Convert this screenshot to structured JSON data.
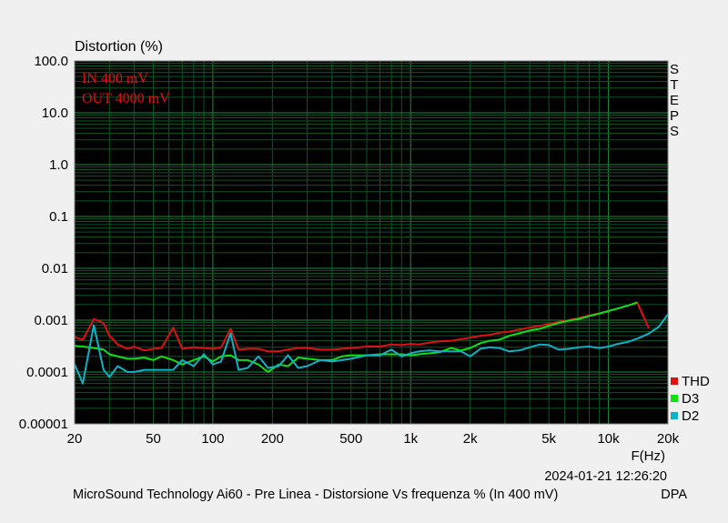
{
  "chart_data": {
    "type": "line",
    "title": "",
    "ylabel": "Distortion (%)",
    "xlabel": "F(Hz)",
    "x_scale": "log",
    "y_scale": "log",
    "xlim": [
      20,
      20000
    ],
    "ylim": [
      1e-05,
      100
    ],
    "grid": true,
    "legend_position": "bottom-right",
    "x_ticks": [
      {
        "value": 20,
        "label": "20"
      },
      {
        "value": 50,
        "label": "50"
      },
      {
        "value": 100,
        "label": "100"
      },
      {
        "value": 200,
        "label": "200"
      },
      {
        "value": 500,
        "label": "500"
      },
      {
        "value": 1000,
        "label": "1k"
      },
      {
        "value": 2000,
        "label": "2k"
      },
      {
        "value": 5000,
        "label": "5k"
      },
      {
        "value": 10000,
        "label": "10k"
      },
      {
        "value": 20000,
        "label": "20k"
      }
    ],
    "y_ticks": [
      {
        "value": 100,
        "label": "100.0"
      },
      {
        "value": 10,
        "label": "10.0"
      },
      {
        "value": 1,
        "label": "1.0"
      },
      {
        "value": 0.1,
        "label": "0.1"
      },
      {
        "value": 0.01,
        "label": "0.01"
      },
      {
        "value": 0.001,
        "label": "0.001"
      },
      {
        "value": 0.0001,
        "label": "0.0001"
      },
      {
        "value": 1e-05,
        "label": "0.00001"
      }
    ],
    "annotations": [
      "IN 400 mV",
      "OUT 4000 mV"
    ],
    "side_label": "STEPS",
    "series": [
      {
        "name": "THD",
        "color": "#e01010",
        "points": [
          [
            20,
            0.00047
          ],
          [
            22,
            0.00042
          ],
          [
            25,
            0.00105
          ],
          [
            28,
            0.00088
          ],
          [
            30,
            0.0005
          ],
          [
            33,
            0.00034
          ],
          [
            37,
            0.00028
          ],
          [
            40,
            0.00031
          ],
          [
            45,
            0.00026
          ],
          [
            50,
            0.00028
          ],
          [
            55,
            0.00029
          ],
          [
            63,
            0.00072
          ],
          [
            70,
            0.00028
          ],
          [
            80,
            0.0003
          ],
          [
            90,
            0.00029
          ],
          [
            100,
            0.00028
          ],
          [
            110,
            0.0003
          ],
          [
            123,
            0.00068
          ],
          [
            135,
            0.00027
          ],
          [
            150,
            0.00028
          ],
          [
            170,
            0.00028
          ],
          [
            190,
            0.00025
          ],
          [
            215,
            0.00025
          ],
          [
            240,
            0.00027
          ],
          [
            270,
            0.00029
          ],
          [
            300,
            0.00029
          ],
          [
            350,
            0.00027
          ],
          [
            400,
            0.00027
          ],
          [
            450,
            0.00028
          ],
          [
            500,
            0.00029
          ],
          [
            600,
            0.00031
          ],
          [
            700,
            0.00031
          ],
          [
            800,
            0.00034
          ],
          [
            900,
            0.00033
          ],
          [
            1000,
            0.00035
          ],
          [
            1100,
            0.00034
          ],
          [
            1250,
            0.00037
          ],
          [
            1400,
            0.00039
          ],
          [
            1600,
            0.0004
          ],
          [
            1800,
            0.00043
          ],
          [
            2000,
            0.00046
          ],
          [
            2250,
            0.0005
          ],
          [
            2500,
            0.00052
          ],
          [
            2800,
            0.00057
          ],
          [
            3150,
            0.0006
          ],
          [
            3550,
            0.00066
          ],
          [
            4000,
            0.00072
          ],
          [
            4500,
            0.00078
          ],
          [
            5000,
            0.00085
          ],
          [
            5600,
            0.00093
          ],
          [
            6300,
            0.001
          ],
          [
            7100,
            0.0011
          ],
          [
            8000,
            0.00123
          ],
          [
            9000,
            0.00136
          ],
          [
            10000,
            0.0015
          ],
          [
            11200,
            0.00168
          ],
          [
            12500,
            0.0019
          ],
          [
            14000,
            0.00218
          ],
          [
            16000,
            0.0007
          ]
        ]
      },
      {
        "name": "D3",
        "color": "#10e010",
        "points": [
          [
            20,
            0.00032
          ],
          [
            22,
            0.00031
          ],
          [
            25,
            0.00029
          ],
          [
            28,
            0.00027
          ],
          [
            30,
            0.00022
          ],
          [
            33,
            0.0002
          ],
          [
            37,
            0.00018
          ],
          [
            40,
            0.00018
          ],
          [
            45,
            0.00019
          ],
          [
            50,
            0.00017
          ],
          [
            55,
            0.0002
          ],
          [
            63,
            0.00017
          ],
          [
            70,
            0.00014
          ],
          [
            80,
            0.00017
          ],
          [
            90,
            0.0002
          ],
          [
            100,
            0.00016
          ],
          [
            110,
            0.0002
          ],
          [
            123,
            0.00021
          ],
          [
            135,
            0.00017
          ],
          [
            150,
            0.00017
          ],
          [
            170,
            0.00014
          ],
          [
            190,
            0.0001
          ],
          [
            215,
            0.00014
          ],
          [
            240,
            0.00013
          ],
          [
            270,
            0.00019
          ],
          [
            300,
            0.00018
          ],
          [
            350,
            0.00017
          ],
          [
            400,
            0.00017
          ],
          [
            450,
            0.0002
          ],
          [
            500,
            0.00021
          ],
          [
            600,
            0.00021
          ],
          [
            700,
            0.00022
          ],
          [
            800,
            0.00022
          ],
          [
            900,
            0.00022
          ],
          [
            1000,
            0.00021
          ],
          [
            1100,
            0.00022
          ],
          [
            1250,
            0.00023
          ],
          [
            1400,
            0.00024
          ],
          [
            1600,
            0.00029
          ],
          [
            1800,
            0.00026
          ],
          [
            2000,
            0.00029
          ],
          [
            2250,
            0.00036
          ],
          [
            2500,
            0.0004
          ],
          [
            2800,
            0.00042
          ],
          [
            3150,
            0.0005
          ],
          [
            3550,
            0.00056
          ],
          [
            4000,
            0.00063
          ],
          [
            4500,
            0.00068
          ],
          [
            5000,
            0.00078
          ],
          [
            5600,
            0.00088
          ],
          [
            6300,
            0.00098
          ],
          [
            7100,
            0.00105
          ],
          [
            8000,
            0.0012
          ],
          [
            9000,
            0.00134
          ],
          [
            10000,
            0.0015
          ],
          [
            11200,
            0.0017
          ],
          [
            12500,
            0.0019
          ],
          [
            14000,
            0.0022
          ]
        ]
      },
      {
        "name": "D2",
        "color": "#10b0c8",
        "points": [
          [
            20,
            0.00014
          ],
          [
            22,
            6e-05
          ],
          [
            25,
            0.0008
          ],
          [
            28,
            0.00011
          ],
          [
            30,
            8e-05
          ],
          [
            33,
            0.00013
          ],
          [
            37,
            0.0001
          ],
          [
            40,
            0.0001
          ],
          [
            45,
            0.00011
          ],
          [
            50,
            0.00011
          ],
          [
            55,
            0.00011
          ],
          [
            63,
            0.00011
          ],
          [
            70,
            0.00017
          ],
          [
            80,
            0.00013
          ],
          [
            90,
            0.00022
          ],
          [
            100,
            0.00014
          ],
          [
            110,
            0.00016
          ],
          [
            123,
            0.00056
          ],
          [
            135,
            0.00011
          ],
          [
            150,
            0.00012
          ],
          [
            170,
            0.0002
          ],
          [
            190,
            0.00012
          ],
          [
            215,
            0.00013
          ],
          [
            240,
            0.00021
          ],
          [
            270,
            0.00012
          ],
          [
            300,
            0.00013
          ],
          [
            350,
            0.00017
          ],
          [
            400,
            0.00016
          ],
          [
            450,
            0.00017
          ],
          [
            500,
            0.00018
          ],
          [
            600,
            0.00021
          ],
          [
            700,
            0.00021
          ],
          [
            800,
            0.00027
          ],
          [
            900,
            0.0002
          ],
          [
            1000,
            0.00023
          ],
          [
            1100,
            0.00025
          ],
          [
            1250,
            0.00026
          ],
          [
            1400,
            0.00025
          ],
          [
            1600,
            0.00025
          ],
          [
            1800,
            0.00025
          ],
          [
            2000,
            0.0002
          ],
          [
            2250,
            0.00028
          ],
          [
            2500,
            0.0003
          ],
          [
            2800,
            0.00029
          ],
          [
            3150,
            0.00025
          ],
          [
            3550,
            0.00026
          ],
          [
            4000,
            0.0003
          ],
          [
            4500,
            0.00034
          ],
          [
            5000,
            0.00033
          ],
          [
            5600,
            0.00027
          ],
          [
            6300,
            0.00028
          ],
          [
            7100,
            0.0003
          ],
          [
            8000,
            0.00031
          ],
          [
            9000,
            0.00029
          ],
          [
            10000,
            0.00031
          ],
          [
            11200,
            0.00035
          ],
          [
            12500,
            0.00038
          ],
          [
            14000,
            0.00044
          ],
          [
            16000,
            0.00055
          ],
          [
            18000,
            0.00075
          ],
          [
            20000,
            0.0013
          ]
        ]
      }
    ]
  },
  "footer": {
    "timestamp": "2024-01-21 12:26:20",
    "caption": "MicroSound Technology Ai60 - Pre Linea - Distorsione Vs frequenza % (In 400 mV)",
    "brand": "DPA"
  }
}
